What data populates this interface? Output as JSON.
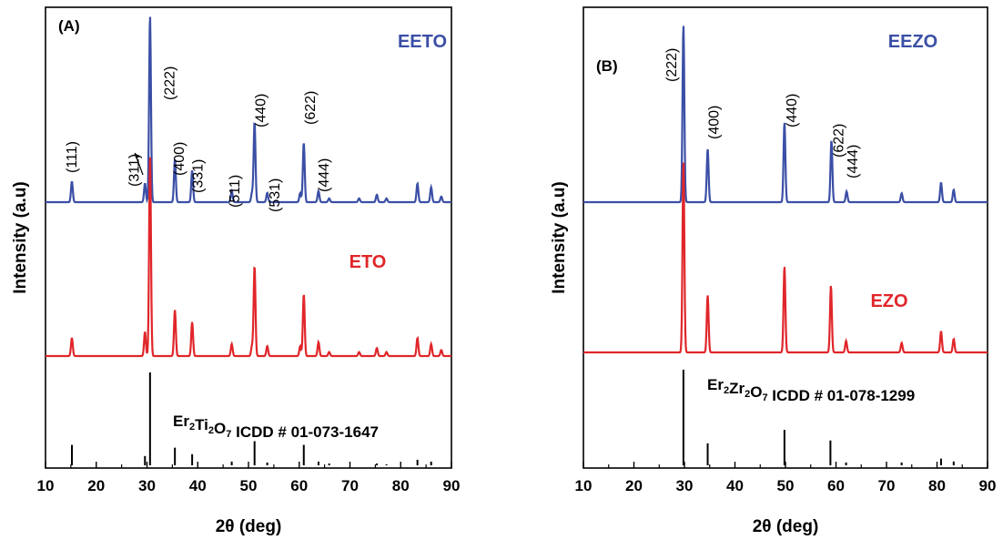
{
  "chart_data": [
    {
      "panel_label": "(A)",
      "type": "line",
      "xlabel": "2θ (deg)",
      "ylabel": "Intensity (a.u)",
      "xlim": [
        10,
        90
      ],
      "xticks": [
        10,
        20,
        30,
        40,
        50,
        60,
        70,
        80,
        90
      ],
      "series": [
        {
          "name": "EETO",
          "color": "#3b4fa6",
          "peaks": [
            {
              "x": 15.2,
              "h": 0.11
            },
            {
              "x": 29.6,
              "h": 0.1
            },
            {
              "x": 30.6,
              "h": 1.0
            },
            {
              "x": 35.5,
              "h": 0.23
            },
            {
              "x": 38.9,
              "h": 0.17
            },
            {
              "x": 46.7,
              "h": 0.06
            },
            {
              "x": 50.7,
              "h": 0.05
            },
            {
              "x": 51.2,
              "h": 0.43
            },
            {
              "x": 53.7,
              "h": 0.05
            },
            {
              "x": 60.2,
              "h": 0.05
            },
            {
              "x": 60.9,
              "h": 0.32
            },
            {
              "x": 63.8,
              "h": 0.06
            },
            {
              "x": 65.9,
              "h": 0.02
            },
            {
              "x": 71.8,
              "h": 0.02
            },
            {
              "x": 75.3,
              "h": 0.04
            },
            {
              "x": 77.2,
              "h": 0.02
            },
            {
              "x": 83.3,
              "h": 0.1
            },
            {
              "x": 86.0,
              "h": 0.08
            },
            {
              "x": 88.0,
              "h": 0.03
            }
          ]
        },
        {
          "name": "ETO",
          "color": "#e0262a",
          "peaks": [
            {
              "x": 15.2,
              "h": 0.09
            },
            {
              "x": 29.6,
              "h": 0.12
            },
            {
              "x": 30.6,
              "h": 1.0
            },
            {
              "x": 35.5,
              "h": 0.23
            },
            {
              "x": 38.9,
              "h": 0.17
            },
            {
              "x": 46.7,
              "h": 0.06
            },
            {
              "x": 50.7,
              "h": 0.05
            },
            {
              "x": 51.2,
              "h": 0.45
            },
            {
              "x": 53.7,
              "h": 0.05
            },
            {
              "x": 60.2,
              "h": 0.05
            },
            {
              "x": 60.9,
              "h": 0.31
            },
            {
              "x": 63.8,
              "h": 0.07
            },
            {
              "x": 65.9,
              "h": 0.02
            },
            {
              "x": 71.8,
              "h": 0.02
            },
            {
              "x": 75.3,
              "h": 0.04
            },
            {
              "x": 77.2,
              "h": 0.02
            },
            {
              "x": 83.3,
              "h": 0.09
            },
            {
              "x": 86.0,
              "h": 0.06
            },
            {
              "x": 88.0,
              "h": 0.03
            }
          ]
        }
      ],
      "reference": {
        "label": "Er2Ti2O7 ICDD # 01-073-1647",
        "sticks": [
          {
            "x": 15.2,
            "h": 0.22
          },
          {
            "x": 29.6,
            "h": 0.1
          },
          {
            "x": 30.6,
            "h": 1.0
          },
          {
            "x": 35.5,
            "h": 0.19
          },
          {
            "x": 38.9,
            "h": 0.12
          },
          {
            "x": 46.7,
            "h": 0.04
          },
          {
            "x": 51.2,
            "h": 0.26
          },
          {
            "x": 53.7,
            "h": 0.03
          },
          {
            "x": 60.9,
            "h": 0.22
          },
          {
            "x": 63.8,
            "h": 0.04
          },
          {
            "x": 65.9,
            "h": 0.02
          },
          {
            "x": 75.3,
            "h": 0.02
          },
          {
            "x": 77.2,
            "h": 0.01
          },
          {
            "x": 83.3,
            "h": 0.06
          },
          {
            "x": 86.0,
            "h": 0.04
          }
        ]
      },
      "annotations": [
        {
          "text": "(111)",
          "x": 15.2
        },
        {
          "text": "(311)",
          "x": 27.5
        },
        {
          "text": "(222)",
          "x": 34.5
        },
        {
          "text": "(400)",
          "x": 36.4
        },
        {
          "text": "(331)",
          "x": 40.0
        },
        {
          "text": "(511)",
          "x": 47.3
        },
        {
          "text": "(440)",
          "x": 52.4
        },
        {
          "text": "(531)",
          "x": 55.2
        },
        {
          "text": "(622)",
          "x": 62.2
        },
        {
          "text": "(444)",
          "x": 64.9
        }
      ]
    },
    {
      "panel_label": "(B)",
      "type": "line",
      "xlabel": "2θ (deg)",
      "ylabel": "Intensity (a.u)",
      "xlim": [
        10,
        90
      ],
      "xticks": [
        10,
        20,
        30,
        40,
        50,
        60,
        70,
        80,
        90
      ],
      "series": [
        {
          "name": "EEZO",
          "color": "#3b4fa6",
          "peaks": [
            {
              "x": 29.8,
              "h": 1.0
            },
            {
              "x": 34.6,
              "h": 0.3
            },
            {
              "x": 49.8,
              "h": 0.45
            },
            {
              "x": 59.1,
              "h": 0.35
            },
            {
              "x": 62.1,
              "h": 0.06
            },
            {
              "x": 73.0,
              "h": 0.05
            },
            {
              "x": 80.8,
              "h": 0.11
            },
            {
              "x": 83.3,
              "h": 0.07
            }
          ]
        },
        {
          "name": "EZO",
          "color": "#e0262a",
          "peaks": [
            {
              "x": 29.8,
              "h": 1.0
            },
            {
              "x": 34.6,
              "h": 0.3
            },
            {
              "x": 49.8,
              "h": 0.45
            },
            {
              "x": 59.0,
              "h": 0.35
            },
            {
              "x": 62.0,
              "h": 0.06
            },
            {
              "x": 73.0,
              "h": 0.05
            },
            {
              "x": 80.8,
              "h": 0.11
            },
            {
              "x": 83.3,
              "h": 0.07
            }
          ]
        }
      ],
      "reference": {
        "label": "Er2Zr2O7 ICDD # 01-078-1299",
        "sticks": [
          {
            "x": 29.8,
            "h": 1.0
          },
          {
            "x": 34.6,
            "h": 0.23
          },
          {
            "x": 49.8,
            "h": 0.37
          },
          {
            "x": 58.9,
            "h": 0.26
          },
          {
            "x": 62.0,
            "h": 0.03
          },
          {
            "x": 73.0,
            "h": 0.03
          },
          {
            "x": 80.8,
            "h": 0.07
          },
          {
            "x": 83.3,
            "h": 0.04
          }
        ]
      },
      "annotations": [
        {
          "text": "(222)",
          "x": 27.5
        },
        {
          "text": "(400)",
          "x": 35.9
        },
        {
          "text": "(440)",
          "x": 51.3
        },
        {
          "text": "(622)",
          "x": 60.5
        },
        {
          "text": "(444)",
          "x": 63.3
        }
      ]
    }
  ]
}
